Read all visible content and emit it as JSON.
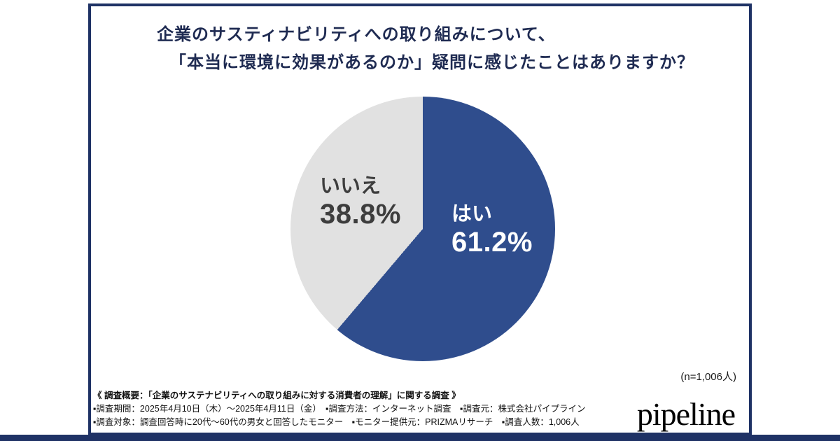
{
  "header": {
    "title_line1": "企業のサスティナビリティへの取り組みについて、",
    "title_line2": "「本当に環境に効果があるのか」疑問に感じたことはありますか？"
  },
  "chart_data": {
    "type": "pie",
    "title": "企業のサスティナビリティへの取り組みについて、「本当に環境に効果があるのか」疑問に感じたことはありますか？",
    "categories": [
      "はい",
      "いいえ"
    ],
    "values": [
      61.2,
      38.8
    ],
    "slices": [
      {
        "label": "はい",
        "value": 61.2,
        "percent_label": "61.2%",
        "color": "#2f4d8d",
        "label_color": "#ffffff"
      },
      {
        "label": "いいえ",
        "value": 38.8,
        "percent_label": "38.8%",
        "color": "#e1e1e1",
        "label_color": "#3d3d3d"
      }
    ],
    "start_angle": "top",
    "direction": "clockwise",
    "legend_position": "inside-slices",
    "sample_size_note": "(n=1,006人)"
  },
  "footer": {
    "survey_overview": "《 調査概要：「企業のサステナビリティへの取り組みに対する消費者の理解」に関する調査 》",
    "survey_details_1": "▪調査期間：2025年4月10日（木）～2025年4月11日（金）　▪調査方法：インターネット調査　▪調査元：株式会社パイプライン",
    "survey_details_2": "▪調査対象：調査回答時に20代～60代の男女と回答したモニター　▪モニター提供元：PRIZMAリサーチ　▪調査人数：1,006人",
    "logo_text": "pipeline"
  },
  "colors": {
    "frame_border": "#1f3265",
    "pie_yes": "#2f4d8d",
    "pie_no": "#e1e1e1",
    "title_text": "#1f2b52",
    "background": "#ffffff"
  }
}
